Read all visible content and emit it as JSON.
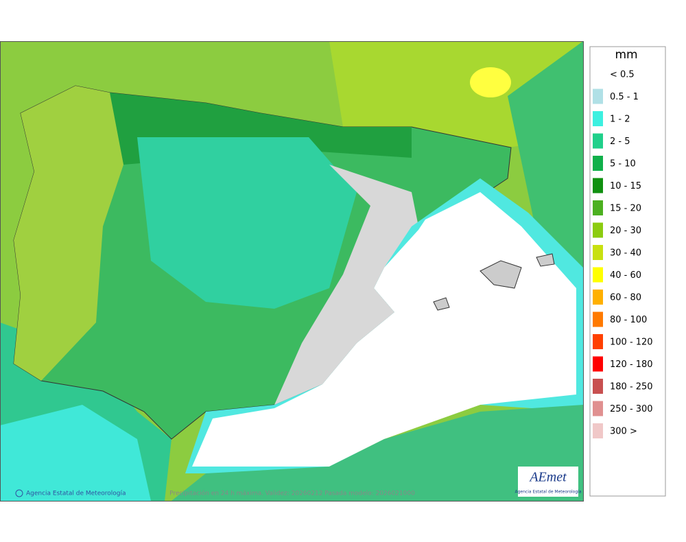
{
  "map": {
    "footer_left": "Agencia Estatal de Meteorología",
    "footer_center": "Precipitación en 24 h máxima. Validez: 20260212 Pasada modelo: 2026021000",
    "logo": "AEmet",
    "logo_caption": "Agencia Estatal de Meteorología"
  },
  "legend": {
    "title": "mm",
    "items": [
      {
        "label": "< 0.5",
        "color": "#ffffff"
      },
      {
        "label": "0.5 - 1",
        "color": "#b0e0e6"
      },
      {
        "label": "1 - 2",
        "color": "#3cf0e0"
      },
      {
        "label": "2 - 5",
        "color": "#20d08a"
      },
      {
        "label": "5 - 10",
        "color": "#10b04a"
      },
      {
        "label": "10 - 15",
        "color": "#109010"
      },
      {
        "label": "15 - 20",
        "color": "#4cb020"
      },
      {
        "label": "20 - 30",
        "color": "#8ccc10"
      },
      {
        "label": "30 - 40",
        "color": "#c8e010"
      },
      {
        "label": "40 - 60",
        "color": "#ffff00"
      },
      {
        "label": "60 - 80",
        "color": "#ffb000"
      },
      {
        "label": "80 - 100",
        "color": "#ff7a00"
      },
      {
        "label": "100 - 120",
        "color": "#ff4000"
      },
      {
        "label": "120 - 180",
        "color": "#ff0000"
      },
      {
        "label": "180 - 250",
        "color": "#c85050"
      },
      {
        "label": "250 - 300",
        "color": "#e09090"
      },
      {
        "label": "300 >",
        "color": "#f0c8c8"
      }
    ]
  }
}
